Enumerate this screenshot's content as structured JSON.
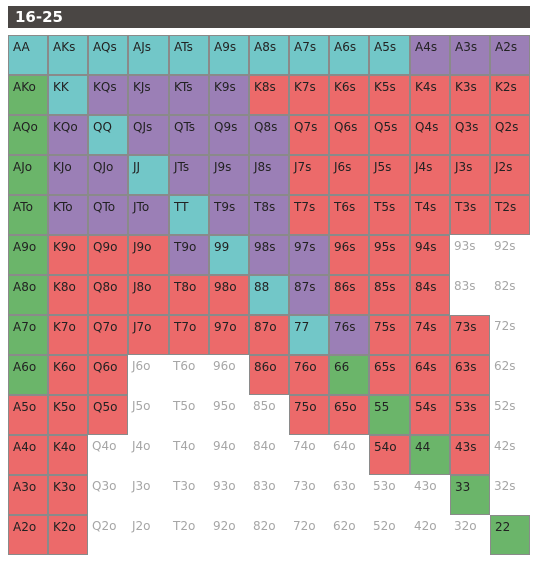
{
  "title": "16-25",
  "colors": {
    "cyan": "#72c7c8",
    "purple": "#9b7fb6",
    "red": "#ec6a6a",
    "green": "#6bb56a",
    "none": "#ffffff"
  },
  "chart_data": {
    "type": "table",
    "title": "16-25",
    "ranks": [
      "A",
      "K",
      "Q",
      "J",
      "T",
      "9",
      "8",
      "7",
      "6",
      "5",
      "4",
      "3",
      "2"
    ],
    "legend": {
      "C": "cyan",
      "P": "purple",
      "R": "red",
      "G": "green",
      ".": "none"
    },
    "rows": [
      {
        "hands": [
          "AA",
          "AKs",
          "AQs",
          "AJs",
          "ATs",
          "A9s",
          "A8s",
          "A7s",
          "A6s",
          "A5s",
          "A4s",
          "A3s",
          "A2s"
        ],
        "colors": "CCCCCCCCCCPPP"
      },
      {
        "hands": [
          "AKo",
          "KK",
          "KQs",
          "KJs",
          "KTs",
          "K9s",
          "K8s",
          "K7s",
          "K6s",
          "K5s",
          "K4s",
          "K3s",
          "K2s"
        ],
        "colors": "GCPPPPRRRRRRR"
      },
      {
        "hands": [
          "AQo",
          "KQo",
          "QQ",
          "QJs",
          "QTs",
          "Q9s",
          "Q8s",
          "Q7s",
          "Q6s",
          "Q5s",
          "Q4s",
          "Q3s",
          "Q2s"
        ],
        "colors": "GPCPPPPRRRRRR"
      },
      {
        "hands": [
          "AJo",
          "KJo",
          "QJo",
          "JJ",
          "JTs",
          "J9s",
          "J8s",
          "J7s",
          "J6s",
          "J5s",
          "J4s",
          "J3s",
          "J2s"
        ],
        "colors": "GPPCPPPRRRRRR"
      },
      {
        "hands": [
          "ATo",
          "KTo",
          "QTo",
          "JTo",
          "TT",
          "T9s",
          "T8s",
          "T7s",
          "T6s",
          "T5s",
          "T4s",
          "T3s",
          "T2s"
        ],
        "colors": "GPPPCPPRRRRRR"
      },
      {
        "hands": [
          "A9o",
          "K9o",
          "Q9o",
          "J9o",
          "T9o",
          "99",
          "98s",
          "97s",
          "96s",
          "95s",
          "94s",
          "93s",
          "92s"
        ],
        "colors": "GRRRPCPPRRR.."
      },
      {
        "hands": [
          "A8o",
          "K8o",
          "Q8o",
          "J8o",
          "T8o",
          "98o",
          "88",
          "87s",
          "86s",
          "85s",
          "84s",
          "83s",
          "82s"
        ],
        "colors": "GRRRRRCPRRR.."
      },
      {
        "hands": [
          "A7o",
          "K7o",
          "Q7o",
          "J7o",
          "T7o",
          "97o",
          "87o",
          "77",
          "76s",
          "75s",
          "74s",
          "73s",
          "72s"
        ],
        "colors": "GRRRRRRCPRRR."
      },
      {
        "hands": [
          "A6o",
          "K6o",
          "Q6o",
          "J6o",
          "T6o",
          "96o",
          "86o",
          "76o",
          "66",
          "65s",
          "64s",
          "63s",
          "62s"
        ],
        "colors": "GRR...RRGRRR."
      },
      {
        "hands": [
          "A5o",
          "K5o",
          "Q5o",
          "J5o",
          "T5o",
          "95o",
          "85o",
          "75o",
          "65o",
          "55",
          "54s",
          "53s",
          "52s"
        ],
        "colors": "RRR....RRGRR."
      },
      {
        "hands": [
          "A4o",
          "K4o",
          "Q4o",
          "J4o",
          "T4o",
          "94o",
          "84o",
          "74o",
          "64o",
          "54o",
          "44",
          "43s",
          "42s"
        ],
        "colors": "RR.......RGR."
      },
      {
        "hands": [
          "A3o",
          "K3o",
          "Q3o",
          "J3o",
          "T3o",
          "93o",
          "83o",
          "73o",
          "63o",
          "53o",
          "43o",
          "33",
          "32s"
        ],
        "colors": "RR.........G."
      },
      {
        "hands": [
          "A2o",
          "K2o",
          "Q2o",
          "J2o",
          "T2o",
          "92o",
          "82o",
          "72o",
          "62o",
          "52o",
          "42o",
          "32o",
          "22"
        ],
        "colors": "RR..........G"
      }
    ]
  }
}
